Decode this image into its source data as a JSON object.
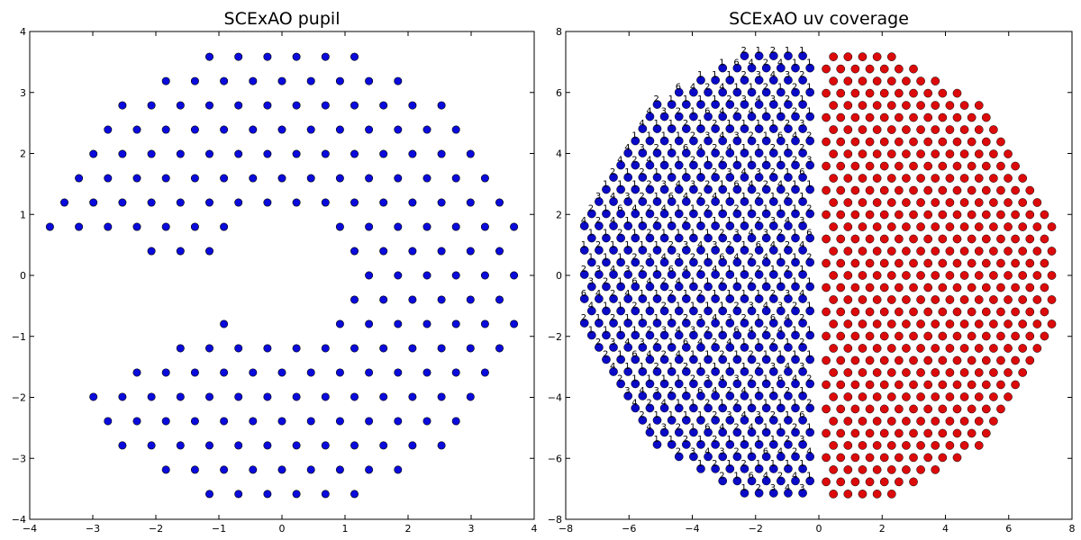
{
  "colors": {
    "pupil": "#0a0adc",
    "uv_blue": "#0a0ac8",
    "uv_red": "#dc0a0a",
    "marker_edge": "#000000"
  },
  "chart_data": [
    {
      "id": "pupil",
      "type": "scatter",
      "title": "SCExAO pupil",
      "xlabel": "",
      "ylabel": "",
      "xlim": [
        -4,
        4
      ],
      "ylim": [
        -4,
        4
      ],
      "xticks": [
        -4,
        -3,
        -2,
        -1,
        0,
        1,
        2,
        3,
        4
      ],
      "yticks": [
        -4,
        -3,
        -2,
        -1,
        0,
        1,
        2,
        3,
        4
      ],
      "grid": false,
      "legend": "none",
      "marker": "circle",
      "points_rule": "hexagonal lattice, pitch 0.46, inside annulus radius 1.05 to 3.78, excluding a wedge from 170 to 212 degrees",
      "lattice": {
        "pitch": 0.46,
        "rotation_deg": 0,
        "r_inner": 1.05,
        "r_outer": 3.78,
        "gap_deg": [
          170,
          212
        ]
      }
    },
    {
      "id": "uv",
      "type": "scatter",
      "title": "SCExAO uv coverage",
      "xlabel": "",
      "ylabel": "",
      "xlim": [
        -8,
        8
      ],
      "ylim": [
        -8,
        8
      ],
      "xticks": [
        -8,
        -6,
        -4,
        -2,
        0,
        2,
        4,
        6,
        8
      ],
      "yticks": [
        -8,
        -6,
        -4,
        -2,
        0,
        2,
        4,
        6,
        8
      ],
      "grid": false,
      "legend": "none",
      "marker": "circle",
      "series": [
        {
          "color": "uv_red",
          "region": "u >= 0",
          "points_rule": "hexagonal lattice, pitch 0.46, inside radius 7.55"
        },
        {
          "color": "uv_blue",
          "region": "u < 0",
          "points_rule": "mirror of the red points with small offset, labeled with baseline redundancy counts"
        }
      ],
      "lattice": {
        "pitch": 0.46,
        "rotation_deg": 0,
        "r_outer": 7.55
      },
      "redundancy_labels_sample": [
        "1",
        "2",
        "3",
        "4",
        "3",
        "2",
        "1",
        "6",
        "4",
        "2",
        "4",
        "1",
        "1",
        "2",
        "1",
        "2",
        "1",
        "1",
        "1"
      ]
    }
  ]
}
